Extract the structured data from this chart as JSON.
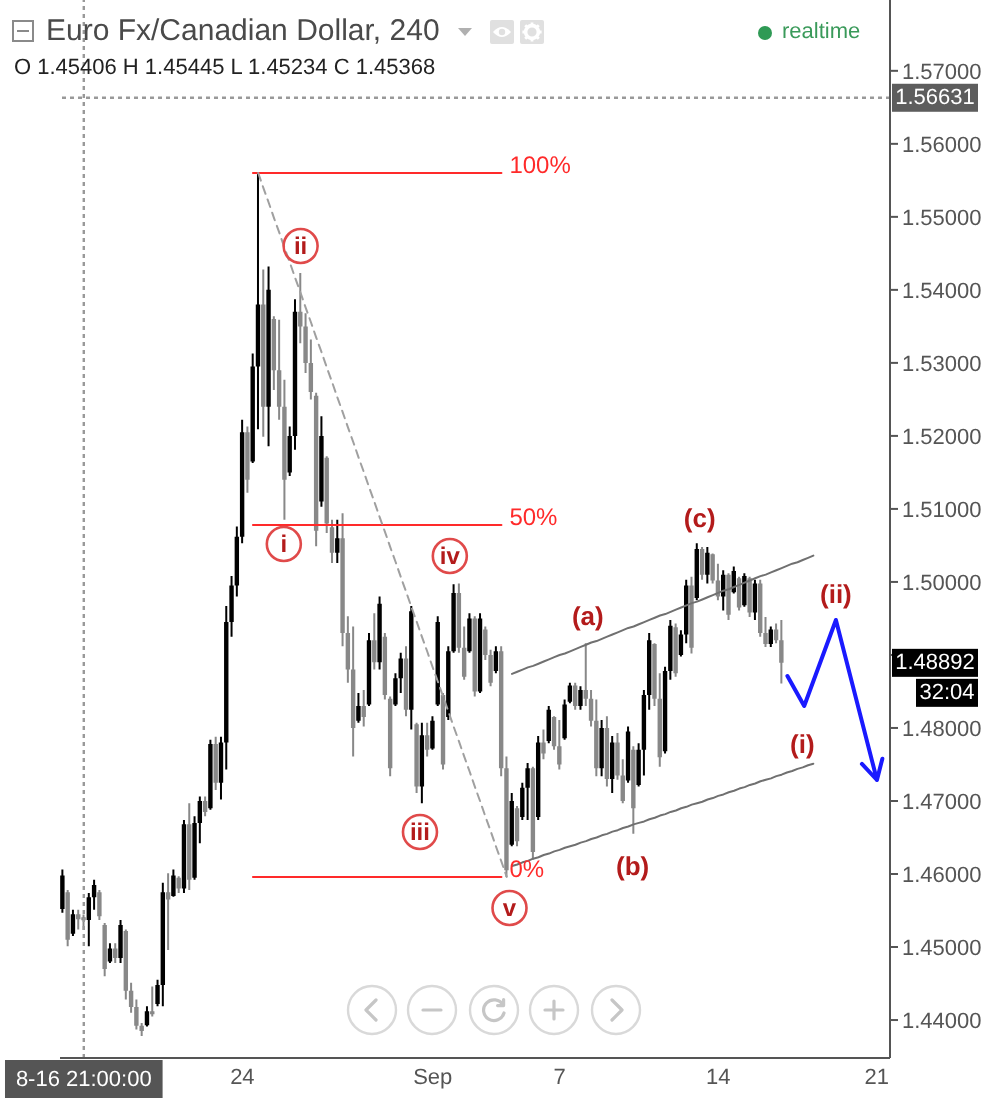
{
  "chart_data": {
    "type": "candlestick",
    "title": "Euro Fx/Canadian Dollar, 240",
    "subtitle": "O 1.45406 H 1.45445 L 1.45234 C 1.45368",
    "categories": [
      null,
      null,
      null,
      null,
      "8-16 21:00:00",
      null,
      null,
      null,
      null,
      null,
      null,
      null,
      null,
      null,
      null,
      null,
      null,
      null,
      null,
      null,
      null,
      null,
      null,
      null,
      null,
      null,
      null,
      null,
      null,
      null,
      null,
      null,
      null,
      null,
      "24",
      null,
      null,
      null,
      null,
      null,
      null,
      null,
      null,
      null,
      null,
      null,
      null,
      null,
      null,
      null,
      null,
      null,
      null,
      null,
      null,
      null,
      null,
      null,
      null,
      null,
      null,
      null,
      null,
      null,
      null,
      null,
      null,
      null,
      null,
      null,
      "Sep",
      null,
      null,
      null,
      null,
      null,
      null,
      null,
      null,
      null,
      null,
      null,
      null,
      null,
      null,
      null,
      null,
      null,
      null,
      null,
      null,
      null,
      null,
      null,
      "7",
      null,
      null,
      null,
      null,
      null,
      null,
      null,
      null,
      null,
      null,
      null,
      null,
      null,
      null,
      null,
      null,
      null,
      null,
      null,
      null,
      null,
      null,
      null,
      null,
      null,
      null,
      null,
      null,
      null,
      "14",
      null,
      null,
      null,
      null,
      null,
      null,
      null,
      null,
      null,
      null,
      null,
      null,
      null,
      null,
      null,
      null,
      null,
      null,
      null,
      null,
      null,
      null,
      null,
      null,
      null,
      null,
      null,
      null,
      null,
      "21",
      null,
      null
    ],
    "ohlc": [
      [
        1.4552,
        1.4606,
        1.4547,
        1.4598
      ],
      [
        1.4575,
        1.4578,
        1.4501,
        1.451
      ],
      [
        1.4518,
        1.4551,
        1.4515,
        1.4545
      ],
      [
        1.4545,
        1.4551,
        1.4524,
        1.4538
      ],
      [
        1.45406,
        1.45445,
        1.45234,
        1.45368
      ],
      [
        1.4537,
        1.4574,
        1.4501,
        1.4568
      ],
      [
        1.4568,
        1.4592,
        1.4551,
        1.4585
      ],
      [
        1.4575,
        1.4578,
        1.4537,
        1.4542
      ],
      [
        1.453,
        1.4533,
        1.446,
        1.447
      ],
      [
        1.448,
        1.4505,
        1.4478,
        1.4498
      ],
      [
        1.4498,
        1.4505,
        1.4478,
        1.4485
      ],
      [
        1.4485,
        1.4537,
        1.4478,
        1.453
      ],
      [
        1.4522,
        1.4524,
        1.4428,
        1.444
      ],
      [
        1.444,
        1.4451,
        1.441,
        1.4418
      ],
      [
        1.4418,
        1.4428,
        1.4387,
        1.4392
      ],
      [
        1.4392,
        1.4396,
        1.4378,
        1.4385
      ],
      [
        1.4393,
        1.4419,
        1.4391,
        1.4412
      ],
      [
        1.4412,
        1.4446,
        1.4405,
        1.4408
      ],
      [
        1.4422,
        1.4455,
        1.4419,
        1.4448
      ],
      [
        1.4448,
        1.4588,
        1.4419,
        1.4575
      ],
      [
        1.4575,
        1.4601,
        1.4496,
        1.4565
      ],
      [
        1.457,
        1.4606,
        1.4569,
        1.4598
      ],
      [
        1.4595,
        1.4597,
        1.4574,
        1.458
      ],
      [
        1.458,
        1.4674,
        1.4574,
        1.4668
      ],
      [
        1.4668,
        1.4697,
        1.4578,
        1.4592
      ],
      [
        1.4595,
        1.4679,
        1.4592,
        1.467
      ],
      [
        1.467,
        1.4706,
        1.4642,
        1.47
      ],
      [
        1.47,
        1.4706,
        1.4679,
        1.4685
      ],
      [
        1.469,
        1.4784,
        1.4688,
        1.4778
      ],
      [
        1.4778,
        1.4788,
        1.4715,
        1.4725
      ],
      [
        1.4725,
        1.4788,
        1.4702,
        1.478
      ],
      [
        1.478,
        1.4967,
        1.4743,
        1.4945
      ],
      [
        1.4945,
        1.5008,
        1.4925,
        1.4995
      ],
      [
        1.4995,
        1.5076,
        1.498,
        1.5062
      ],
      [
        1.5062,
        1.5222,
        1.5053,
        1.5205
      ],
      [
        1.5205,
        1.5213,
        1.5122,
        1.514
      ],
      [
        1.5165,
        1.5313,
        1.5163,
        1.5295
      ],
      [
        1.5295,
        1.556,
        1.5209,
        1.538
      ],
      [
        1.538,
        1.5428,
        1.5199,
        1.524
      ],
      [
        1.524,
        1.5432,
        1.5186,
        1.54
      ],
      [
        1.536,
        1.5364,
        1.5263,
        1.529
      ],
      [
        1.529,
        1.5359,
        1.5222,
        1.524
      ],
      [
        1.524,
        1.5277,
        1.5085,
        1.514
      ],
      [
        1.515,
        1.5213,
        1.5145,
        1.52
      ],
      [
        1.52,
        1.5387,
        1.5181,
        1.537
      ],
      [
        1.537,
        1.5423,
        1.5327,
        1.535
      ],
      [
        1.535,
        1.5368,
        1.5286,
        1.53
      ],
      [
        1.53,
        1.5332,
        1.525,
        1.526
      ],
      [
        1.5255,
        1.5259,
        1.5049,
        1.507
      ],
      [
        1.511,
        1.5227,
        1.5103,
        1.52
      ],
      [
        1.517,
        1.5172,
        1.5067,
        1.508
      ],
      [
        1.5075,
        1.5085,
        1.5026,
        1.504
      ],
      [
        1.504,
        1.5085,
        1.5026,
        1.506
      ],
      [
        1.506,
        1.5094,
        1.4912,
        1.493
      ],
      [
        1.493,
        1.4953,
        1.4862,
        1.488
      ],
      [
        1.488,
        1.4939,
        1.4761,
        1.48
      ],
      [
        1.481,
        1.4848,
        1.4807,
        1.483
      ],
      [
        1.483,
        1.4852,
        1.4802,
        1.4815
      ],
      [
        1.4832,
        1.493,
        1.483,
        1.492
      ],
      [
        1.492,
        1.4957,
        1.488,
        1.489
      ],
      [
        1.489,
        1.498,
        1.488,
        1.497
      ],
      [
        1.4925,
        1.493,
        1.4839,
        1.4845
      ],
      [
        1.484,
        1.4843,
        1.4734,
        1.4745
      ],
      [
        1.4832,
        1.4875,
        1.483,
        1.4868
      ],
      [
        1.4868,
        1.4903,
        1.4848,
        1.4895
      ],
      [
        1.4895,
        1.4912,
        1.4816,
        1.4825
      ],
      [
        1.4825,
        1.4967,
        1.4798,
        1.496
      ],
      [
        1.4805,
        1.4807,
        1.4711,
        1.472
      ],
      [
        1.472,
        1.4807,
        1.4697,
        1.479
      ],
      [
        1.479,
        1.4807,
        1.4761,
        1.477
      ],
      [
        1.4772,
        1.4816,
        1.477,
        1.481
      ],
      [
        1.4832,
        1.4953,
        1.483,
        1.4945
      ],
      [
        1.4845,
        1.4848,
        1.4743,
        1.475
      ],
      [
        1.4815,
        1.4912,
        1.4811,
        1.4905
      ],
      [
        1.4905,
        1.4997,
        1.4903,
        1.4985
      ],
      [
        1.4985,
        1.4998,
        1.4903,
        1.491
      ],
      [
        1.491,
        1.4939,
        1.4866,
        1.487
      ],
      [
        1.4905,
        1.4957,
        1.4903,
        1.495
      ],
      [
        1.495,
        1.4953,
        1.4843,
        1.485
      ],
      [
        1.485,
        1.4957,
        1.4848,
        1.495
      ],
      [
        1.4935,
        1.4939,
        1.4893,
        1.49
      ],
      [
        1.49,
        1.4907,
        1.4857,
        1.4862
      ],
      [
        1.4878,
        1.4912,
        1.4875,
        1.4905
      ],
      [
        1.4905,
        1.4912,
        1.4734,
        1.4745
      ],
      [
        1.4745,
        1.4761,
        1.4596,
        1.4605
      ],
      [
        1.464,
        1.4711,
        1.4638,
        1.47
      ],
      [
        1.469,
        1.4693,
        1.4638,
        1.4645
      ],
      [
        1.4678,
        1.4725,
        1.4674,
        1.4718
      ],
      [
        1.4718,
        1.4752,
        1.4674,
        1.4745
      ],
      [
        1.4745,
        1.4747,
        1.462,
        1.463
      ],
      [
        1.4678,
        1.4789,
        1.4674,
        1.478
      ],
      [
        1.478,
        1.4798,
        1.4757,
        1.4765
      ],
      [
        1.4782,
        1.483,
        1.4779,
        1.4825
      ],
      [
        1.4815,
        1.4816,
        1.477,
        1.4775
      ],
      [
        1.4775,
        1.4811,
        1.4743,
        1.475
      ],
      [
        1.4786,
        1.4839,
        1.4784,
        1.4832
      ],
      [
        1.4836,
        1.4862,
        1.4834,
        1.4858
      ],
      [
        1.4858,
        1.4862,
        1.4825,
        1.483
      ],
      [
        1.483,
        1.4857,
        1.4825,
        1.4852
      ],
      [
        1.4852,
        1.4916,
        1.483,
        1.484
      ],
      [
        1.484,
        1.4852,
        1.4802,
        1.481
      ],
      [
        1.481,
        1.4839,
        1.4734,
        1.4745
      ],
      [
        1.4745,
        1.4811,
        1.4734,
        1.48
      ],
      [
        1.48,
        1.4816,
        1.472,
        1.473
      ],
      [
        1.473,
        1.4789,
        1.4711,
        1.478
      ],
      [
        1.478,
        1.4793,
        1.4729,
        1.4735
      ],
      [
        1.4735,
        1.4757,
        1.4697,
        1.47
      ],
      [
        1.4728,
        1.4802,
        1.4725,
        1.4795
      ],
      [
        1.477,
        1.4775,
        1.4655,
        1.469
      ],
      [
        1.4722,
        1.4779,
        1.472,
        1.477
      ],
      [
        1.477,
        1.4852,
        1.4735,
        1.4845
      ],
      [
        1.4845,
        1.493,
        1.4825,
        1.492
      ],
      [
        1.4915,
        1.4916,
        1.483,
        1.484
      ],
      [
        1.484,
        1.4875,
        1.4747,
        1.476
      ],
      [
        1.4768,
        1.4884,
        1.4765,
        1.4878
      ],
      [
        1.4878,
        1.4948,
        1.4866,
        1.494
      ],
      [
        1.4938,
        1.4943,
        1.487,
        1.4875
      ],
      [
        1.49,
        1.4934,
        1.4898,
        1.4928
      ],
      [
        1.4928,
        1.5003,
        1.4916,
        1.4995
      ],
      [
        1.4995,
        1.5007,
        1.4902,
        1.491
      ],
      [
        1.4978,
        1.5053,
        1.4975,
        1.5045
      ],
      [
        1.5045,
        1.5048,
        1.5003,
        1.501
      ],
      [
        1.501,
        1.5048,
        1.4998,
        1.504
      ],
      [
        1.5038,
        1.5039,
        1.4998,
        1.5002
      ],
      [
        1.5002,
        1.5025,
        1.4975,
        1.498
      ],
      [
        1.498,
        1.5016,
        1.4961,
        1.501
      ],
      [
        1.501,
        1.5012,
        1.4948,
        1.4955
      ],
      [
        1.4986,
        1.5021,
        1.4984,
        1.5015
      ],
      [
        1.5005,
        1.5007,
        1.4961,
        1.4965
      ],
      [
        1.4968,
        1.5012,
        1.4966,
        1.5008
      ],
      [
        1.5005,
        1.5007,
        1.4952,
        1.4958
      ],
      [
        1.4958,
        1.5003,
        1.4948,
        1.4998
      ],
      [
        1.4998,
        1.5003,
        1.4925,
        1.493
      ],
      [
        1.493,
        1.4952,
        1.4911,
        1.4915
      ],
      [
        1.4915,
        1.4939,
        1.4911,
        1.4935
      ],
      [
        1.4935,
        1.4943,
        1.4916,
        1.492
      ],
      [
        1.492,
        1.4948,
        1.4861,
        1.48892
      ],
      null,
      null,
      null,
      null,
      null,
      null,
      null,
      null,
      null,
      null,
      null,
      null,
      null,
      null,
      null,
      null,
      null,
      null,
      null,
      null
    ],
    "colors": [
      "#000000",
      "#888888",
      "#000000",
      "#888888",
      "#888888",
      "#000000",
      "#000000",
      "#888888",
      "#888888",
      "#000000",
      "#888888",
      "#000000",
      "#888888",
      "#888888",
      "#888888",
      "#888888",
      "#000000",
      "#888888",
      "#000000",
      "#000000",
      "#888888",
      "#000000",
      "#888888",
      "#000000",
      "#888888",
      "#000000",
      "#000000",
      "#888888",
      "#000000",
      "#888888",
      "#000000",
      "#000000",
      "#000000",
      "#000000",
      "#000000",
      "#888888",
      "#000000",
      "#000000",
      "#888888",
      "#000000",
      "#888888",
      "#888888",
      "#888888",
      "#000000",
      "#000000",
      "#888888",
      "#888888",
      "#888888",
      "#888888",
      "#000000",
      "#888888",
      "#888888",
      "#000000",
      "#888888",
      "#888888",
      "#888888",
      "#000000",
      "#888888",
      "#000000",
      "#888888",
      "#000000",
      "#888888",
      "#888888",
      "#000000",
      "#000000",
      "#888888",
      "#000000",
      "#888888",
      "#000000",
      "#888888",
      "#000000",
      "#000000",
      "#888888",
      "#000000",
      "#000000",
      "#888888",
      "#888888",
      "#000000",
      "#888888",
      "#000000",
      "#888888",
      "#888888",
      "#000000",
      "#888888",
      "#888888",
      "#000000",
      "#888888",
      "#000000",
      "#000000",
      "#888888",
      "#000000",
      "#888888",
      "#000000",
      "#888888",
      "#888888",
      "#000000",
      "#000000",
      "#888888",
      "#000000",
      "#888888",
      "#888888",
      "#888888",
      "#000000",
      "#888888",
      "#000000",
      "#888888",
      "#888888",
      "#000000",
      "#888888",
      "#000000",
      "#000000",
      "#000000",
      "#888888",
      "#888888",
      "#000000",
      "#000000",
      "#888888",
      "#000000",
      "#000000",
      "#888888",
      "#000000",
      "#888888",
      "#000000",
      "#888888",
      "#888888",
      "#000000",
      "#888888",
      "#000000",
      "#888888",
      "#000000",
      "#888888",
      "#000000",
      "#888888",
      "#888888",
      "#000000",
      "#888888",
      "#888888",
      null,
      null,
      null,
      null,
      null,
      null,
      null,
      null,
      null,
      null,
      null,
      null,
      null,
      null,
      null,
      null,
      null,
      null,
      null,
      null
    ],
    "series": [
      {
        "type": "line",
        "name": "100%",
        "color": "#ff2a2a",
        "values": [
          null,
          null,
          null,
          null,
          null,
          null,
          null,
          null,
          null,
          null,
          null,
          null,
          null,
          null,
          null,
          null,
          null,
          null,
          null,
          null,
          null,
          null,
          null,
          null,
          null,
          null,
          null,
          null,
          null,
          null,
          null,
          null,
          null,
          null,
          null,
          null,
          1.556,
          1.556,
          1.556,
          1.556,
          1.556,
          1.556,
          1.556,
          1.556,
          1.556,
          1.556,
          1.556,
          1.556,
          1.556,
          1.556,
          1.556,
          1.556,
          1.556,
          1.556,
          1.556,
          1.556,
          1.556,
          1.556,
          1.556,
          1.556,
          1.556,
          1.556,
          1.556,
          1.556,
          1.556,
          1.556,
          1.556,
          1.556,
          1.556,
          1.556,
          1.556,
          1.556,
          1.556,
          1.556,
          1.556,
          1.556,
          1.556,
          1.556,
          1.556,
          1.556,
          1.556,
          1.556,
          1.556,
          1.556,
          null,
          null,
          null,
          null,
          null,
          null,
          null,
          null,
          null,
          null,
          null,
          null,
          null,
          null,
          null,
          null,
          null,
          null,
          null,
          null,
          null,
          null,
          null,
          null,
          null,
          null,
          null,
          null,
          null,
          null,
          null,
          null,
          null,
          null,
          null,
          null,
          null,
          null,
          null,
          null,
          null,
          null,
          null,
          null,
          null,
          null,
          null,
          null,
          null,
          null,
          null,
          null,
          null,
          null,
          null,
          null,
          null,
          null,
          null,
          null,
          null,
          null,
          null,
          null,
          null,
          null,
          null,
          null,
          null,
          null,
          null,
          null,
          null
        ]
      },
      {
        "type": "line",
        "name": "50%",
        "color": "#ff2a2a",
        "values": [
          null,
          null,
          null,
          null,
          null,
          null,
          null,
          null,
          null,
          null,
          null,
          null,
          null,
          null,
          null,
          null,
          null,
          null,
          null,
          null,
          null,
          null,
          null,
          null,
          null,
          null,
          null,
          null,
          null,
          null,
          null,
          null,
          null,
          null,
          null,
          null,
          1.5078,
          1.5078,
          1.5078,
          1.5078,
          1.5078,
          1.5078,
          1.5078,
          1.5078,
          1.5078,
          1.5078,
          1.5078,
          1.5078,
          1.5078,
          1.5078,
          1.5078,
          1.5078,
          1.5078,
          1.5078,
          1.5078,
          1.5078,
          1.5078,
          1.5078,
          1.5078,
          1.5078,
          1.5078,
          1.5078,
          1.5078,
          1.5078,
          1.5078,
          1.5078,
          1.5078,
          1.5078,
          1.5078,
          1.5078,
          1.5078,
          1.5078,
          1.5078,
          1.5078,
          1.5078,
          1.5078,
          1.5078,
          1.5078,
          1.5078,
          1.5078,
          1.5078,
          1.5078,
          1.5078,
          1.5078,
          null,
          null,
          null,
          null,
          null,
          null,
          null,
          null,
          null,
          null,
          null,
          null,
          null,
          null,
          null,
          null,
          null,
          null,
          null,
          null,
          null,
          null,
          null,
          null,
          null,
          null,
          null,
          null,
          null,
          null,
          null,
          null,
          null,
          null,
          null,
          null,
          null,
          null,
          null,
          null,
          null,
          null,
          null,
          null,
          null,
          null,
          null,
          null,
          null,
          null,
          null,
          null,
          null,
          null,
          null,
          null,
          null,
          null,
          null,
          null,
          null,
          null,
          null,
          null,
          null,
          null,
          null,
          null,
          null,
          null,
          null,
          null,
          null
        ]
      },
      {
        "type": "line",
        "name": "0%",
        "color": "#ff2a2a",
        "values": [
          null,
          null,
          null,
          null,
          null,
          null,
          null,
          null,
          null,
          null,
          null,
          null,
          null,
          null,
          null,
          null,
          null,
          null,
          null,
          null,
          null,
          null,
          null,
          null,
          null,
          null,
          null,
          null,
          null,
          null,
          null,
          null,
          null,
          null,
          null,
          null,
          1.4596,
          1.4596,
          1.4596,
          1.4596,
          1.4596,
          1.4596,
          1.4596,
          1.4596,
          1.4596,
          1.4596,
          1.4596,
          1.4596,
          1.4596,
          1.4596,
          1.4596,
          1.4596,
          1.4596,
          1.4596,
          1.4596,
          1.4596,
          1.4596,
          1.4596,
          1.4596,
          1.4596,
          1.4596,
          1.4596,
          1.4596,
          1.4596,
          1.4596,
          1.4596,
          1.4596,
          1.4596,
          1.4596,
          1.4596,
          1.4596,
          1.4596,
          1.4596,
          1.4596,
          1.4596,
          1.4596,
          1.4596,
          1.4596,
          1.4596,
          1.4596,
          1.4596,
          1.4596,
          1.4596,
          1.4596,
          null,
          null,
          null,
          null,
          null,
          null,
          null,
          null,
          null,
          null,
          null,
          null,
          null,
          null,
          null,
          null,
          null,
          null,
          null,
          null,
          null,
          null,
          null,
          null,
          null,
          null,
          null,
          null,
          null,
          null,
          null,
          null,
          null,
          null,
          null,
          null,
          null,
          null,
          null,
          null,
          null,
          null,
          null,
          null,
          null,
          null,
          null,
          null,
          null,
          null,
          null,
          null,
          null,
          null,
          null,
          null,
          null,
          null,
          null,
          null,
          null,
          null,
          null,
          null,
          null,
          null,
          null,
          null,
          null,
          null,
          null,
          null,
          null
        ]
      },
      {
        "type": "line",
        "color": "#a0a0a0",
        "line_style": "dashed",
        "values": [
          null,
          null,
          null,
          null,
          null,
          null,
          null,
          null,
          null,
          null,
          null,
          null,
          null,
          null,
          null,
          null,
          null,
          null,
          null,
          null,
          null,
          null,
          null,
          null,
          null,
          null,
          null,
          null,
          null,
          null,
          null,
          null,
          null,
          null,
          null,
          null,
          null,
          1.556,
          1.5539,
          1.5519,
          1.5498,
          1.5478,
          1.5457,
          1.5437,
          1.5416,
          1.5396,
          1.5375,
          1.5355,
          1.5334,
          1.5314,
          1.5293,
          1.5273,
          1.5252,
          1.5232,
          1.5211,
          1.5191,
          1.517,
          1.515,
          1.5129,
          1.5109,
          1.5088,
          1.5068,
          1.5047,
          1.5027,
          1.5006,
          1.4986,
          1.4965,
          1.4945,
          1.4924,
          1.4904,
          1.4883,
          1.4863,
          1.4842,
          1.4822,
          1.4801,
          1.4781,
          1.476,
          1.474,
          1.4719,
          1.4699,
          1.4678,
          1.4658,
          1.4637,
          1.4617,
          1.4596,
          null,
          null,
          null,
          null,
          null,
          null,
          null,
          null,
          null,
          null,
          null,
          null,
          null,
          null,
          null,
          null,
          null,
          null,
          null,
          null,
          null,
          null,
          null,
          null,
          null,
          null,
          null,
          null,
          null,
          null,
          null,
          null,
          null,
          null,
          null,
          null,
          null,
          null,
          null,
          null,
          null,
          null,
          null,
          null,
          null,
          null,
          null,
          null,
          null,
          null,
          null,
          null,
          null,
          null,
          null,
          null,
          null,
          null,
          null,
          null,
          null,
          null,
          null,
          null,
          null,
          null,
          null,
          null,
          null,
          null,
          null,
          null
        ]
      },
      {
        "type": "line",
        "color": "#707070",
        "values": [
          null,
          null,
          null,
          null,
          null,
          null,
          null,
          null,
          null,
          null,
          null,
          null,
          null,
          null,
          null,
          null,
          null,
          null,
          null,
          null,
          null,
          null,
          null,
          null,
          null,
          null,
          null,
          null,
          null,
          null,
          null,
          null,
          null,
          null,
          null,
          null,
          null,
          null,
          null,
          null,
          null,
          null,
          null,
          null,
          null,
          null,
          null,
          null,
          null,
          null,
          null,
          null,
          null,
          null,
          null,
          null,
          null,
          null,
          null,
          null,
          null,
          null,
          null,
          null,
          null,
          null,
          null,
          null,
          null,
          null,
          null,
          null,
          null,
          null,
          null,
          null,
          null,
          null,
          null,
          null,
          null,
          null,
          null,
          null,
          null,
          1.4874,
          1.4877,
          1.488,
          1.4883,
          1.4885,
          1.4888,
          1.4891,
          1.4894,
          1.4897,
          1.49,
          1.4902,
          1.4905,
          1.4908,
          1.4911,
          1.4914,
          1.4917,
          1.4919,
          1.4922,
          1.4925,
          1.4928,
          1.4931,
          1.4934,
          1.4937,
          1.4939,
          1.4942,
          1.4945,
          1.4948,
          1.4951,
          1.4954,
          1.4956,
          1.4959,
          1.4962,
          1.4965,
          1.4968,
          1.4971,
          1.4973,
          1.4976,
          1.4979,
          1.4982,
          1.4985,
          1.4988,
          1.499,
          1.4993,
          1.4996,
          1.4999,
          1.5002,
          1.5005,
          1.5008,
          1.501,
          1.5013,
          1.5016,
          1.5019,
          1.5022,
          1.5025,
          1.5027,
          1.503,
          1.5033,
          1.5036,
          null,
          null,
          null,
          null,
          null,
          null,
          null,
          null,
          null,
          null,
          null,
          null,
          null,
          null
        ]
      },
      {
        "type": "line",
        "color": "#707070",
        "values": [
          null,
          null,
          null,
          null,
          null,
          null,
          null,
          null,
          null,
          null,
          null,
          null,
          null,
          null,
          null,
          null,
          null,
          null,
          null,
          null,
          null,
          null,
          null,
          null,
          null,
          null,
          null,
          null,
          null,
          null,
          null,
          null,
          null,
          null,
          null,
          null,
          null,
          null,
          null,
          null,
          null,
          null,
          null,
          null,
          null,
          null,
          null,
          null,
          null,
          null,
          null,
          null,
          null,
          null,
          null,
          null,
          null,
          null,
          null,
          null,
          null,
          null,
          null,
          null,
          null,
          null,
          null,
          null,
          null,
          null,
          null,
          null,
          null,
          null,
          null,
          null,
          null,
          null,
          null,
          null,
          null,
          null,
          null,
          null,
          null,
          1.4611,
          1.4613,
          1.4616,
          1.4618,
          1.4621,
          1.4623,
          1.4626,
          1.4628,
          1.4631,
          1.4633,
          1.4636,
          1.4638,
          1.464,
          1.4643,
          1.4645,
          1.4648,
          1.465,
          1.4653,
          1.4655,
          1.4658,
          1.466,
          1.4663,
          1.4665,
          1.4668,
          1.467,
          1.4672,
          1.4675,
          1.4677,
          1.468,
          1.4682,
          1.4685,
          1.4687,
          1.469,
          1.4692,
          1.4695,
          1.4697,
          1.4699,
          1.4702,
          1.4704,
          1.4707,
          1.4709,
          1.4712,
          1.4714,
          1.4717,
          1.4719,
          1.4722,
          1.4724,
          1.4727,
          1.4729,
          1.4731,
          1.4734,
          1.4736,
          1.4739,
          1.4741,
          1.4744,
          1.4746,
          1.4749,
          1.4751,
          null,
          null,
          null,
          null,
          null,
          null,
          null,
          null,
          null,
          null,
          null,
          null,
          null,
          null
        ]
      }
    ],
    "ylim": [
      1.4348,
      1.5797
    ],
    "yticks": [
      {
        "value": 1.44,
        "label": "1.44000"
      },
      {
        "value": 1.45,
        "label": "1.45000"
      },
      {
        "value": 1.46,
        "label": "1.46000"
      },
      {
        "value": 1.47,
        "label": "1.47000"
      },
      {
        "value": 1.48,
        "label": "1.48000"
      },
      {
        "value": 1.49,
        "label": null
      },
      {
        "value": 1.5,
        "label": "1.50000"
      },
      {
        "value": 1.51,
        "label": "1.51000"
      },
      {
        "value": 1.52,
        "label": "1.52000"
      },
      {
        "value": 1.53,
        "label": "1.53000"
      },
      {
        "value": 1.54,
        "label": "1.54000"
      },
      {
        "value": 1.55,
        "label": "1.55000"
      },
      {
        "value": 1.56,
        "label": "1.56000"
      },
      {
        "value": 1.57,
        "label": "1.57000"
      }
    ],
    "ref_lines": [
      {
        "axis": "x",
        "value": "8-16 21:00:00",
        "color": "#999999",
        "line_style": "dotted"
      },
      {
        "axis": "y",
        "value": 1.56631,
        "label": "1.56631",
        "color": "#999999",
        "line_style": "dotted"
      }
    ],
    "annotations": [
      "i",
      "ii",
      "iii",
      "iv",
      "v",
      "(a)",
      "(b)",
      "(c)",
      "(i)",
      "(ii)",
      "realtime",
      "32:04",
      {
        "text": "1.48892",
        "y": 1.48892
      }
    ]
  }
}
